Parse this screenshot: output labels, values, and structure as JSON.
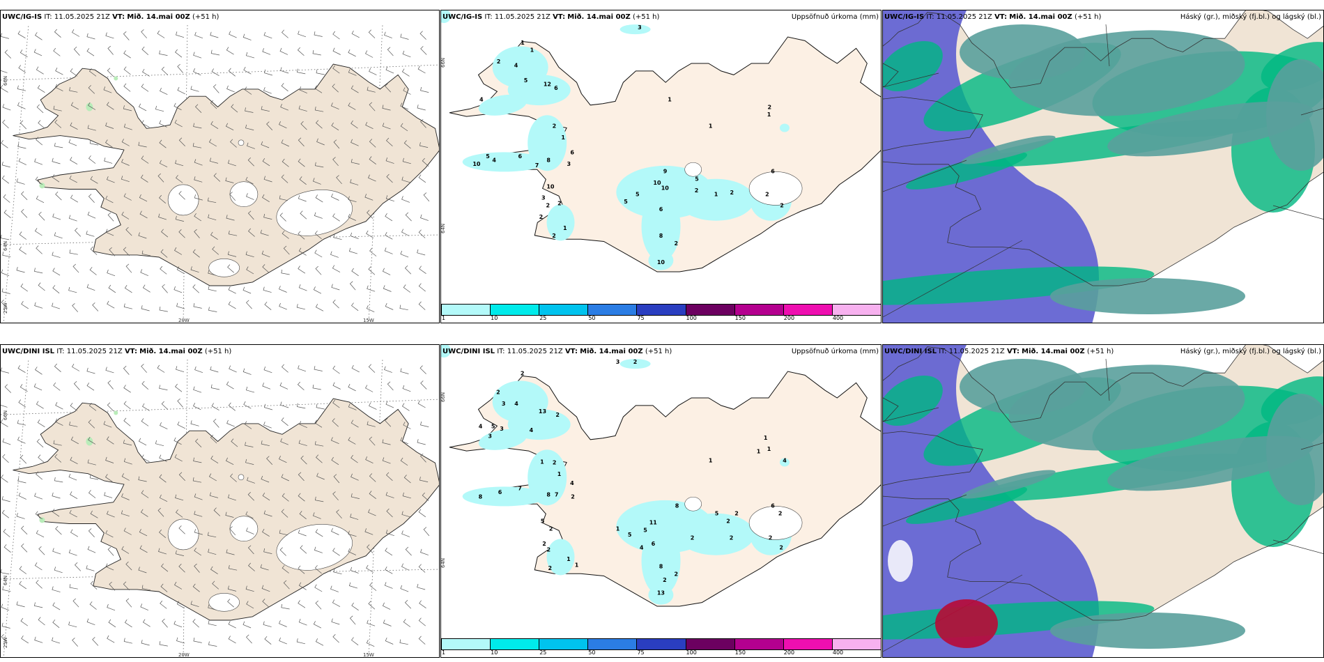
{
  "rows": [
    {
      "model": "UWC/IG-IS",
      "it_label": "IT:",
      "it_value": "11.05.2025 21Z",
      "vt_label": "VT:",
      "vt_value": "Mið. 14.mai 00Z",
      "lead": "(+51 h)",
      "precip_numbers": [
        {
          "v": "3",
          "lon": -19.9,
          "lat": 66.6
        },
        {
          "v": "1",
          "lon": -22.6,
          "lat": 66.4
        },
        {
          "v": "1",
          "lon": -22.4,
          "lat": 66.3
        },
        {
          "v": "2",
          "lon": -23.2,
          "lat": 66.15
        },
        {
          "v": "4",
          "lon": -22.8,
          "lat": 66.1
        },
        {
          "v": "5",
          "lon": -22.6,
          "lat": 65.9
        },
        {
          "v": "12",
          "lon": -22.1,
          "lat": 65.85
        },
        {
          "v": "6",
          "lon": -21.9,
          "lat": 65.8
        },
        {
          "v": "4",
          "lon": -23.7,
          "lat": 65.65
        },
        {
          "v": "1",
          "lon": -19.2,
          "lat": 65.65
        },
        {
          "v": "2",
          "lon": -16.8,
          "lat": 65.55
        },
        {
          "v": "1",
          "lon": -16.8,
          "lat": 65.45
        },
        {
          "v": "1",
          "lon": -18.2,
          "lat": 65.3
        },
        {
          "v": "2",
          "lon": -22.0,
          "lat": 65.3
        },
        {
          "v": "1",
          "lon": -21.8,
          "lat": 65.15
        },
        {
          "v": "6",
          "lon": -21.6,
          "lat": 64.95
        },
        {
          "v": "5",
          "lon": -23.7,
          "lat": 64.9
        },
        {
          "v": "4",
          "lon": -23.55,
          "lat": 64.85
        },
        {
          "v": "6",
          "lon": -22.9,
          "lat": 64.9
        },
        {
          "v": "8",
          "lon": -22.2,
          "lat": 64.85
        },
        {
          "v": "10",
          "lon": -24.0,
          "lat": 64.8
        },
        {
          "v": "7",
          "lon": -22.5,
          "lat": 64.78
        },
        {
          "v": "3",
          "lon": -21.7,
          "lat": 64.8
        },
        {
          "v": "9",
          "lon": -19.3,
          "lat": 64.7
        },
        {
          "v": "6",
          "lon": -16.6,
          "lat": 64.7
        },
        {
          "v": "10",
          "lon": -19.5,
          "lat": 64.55
        },
        {
          "v": "5",
          "lon": -18.5,
          "lat": 64.6
        },
        {
          "v": "10",
          "lon": -22.2,
          "lat": 64.5
        },
        {
          "v": "10",
          "lon": -19.3,
          "lat": 64.48
        },
        {
          "v": "2",
          "lon": -18.5,
          "lat": 64.45
        },
        {
          "v": "5",
          "lon": -20.0,
          "lat": 64.4
        },
        {
          "v": "1",
          "lon": -18.0,
          "lat": 64.4
        },
        {
          "v": "2",
          "lon": -17.6,
          "lat": 64.42
        },
        {
          "v": "2",
          "lon": -16.7,
          "lat": 64.4
        },
        {
          "v": "3",
          "lon": -22.4,
          "lat": 64.35
        },
        {
          "v": "5",
          "lon": -20.3,
          "lat": 64.3
        },
        {
          "v": "2",
          "lon": -22.0,
          "lat": 64.28
        },
        {
          "v": "2",
          "lon": -22.3,
          "lat": 64.25
        },
        {
          "v": "6",
          "lon": -19.4,
          "lat": 64.2
        },
        {
          "v": "2",
          "lon": -16.3,
          "lat": 64.25
        },
        {
          "v": "2",
          "lon": -22.5,
          "lat": 64.1
        },
        {
          "v": "1",
          "lon": -21.9,
          "lat": 63.95
        },
        {
          "v": "8",
          "lon": -19.4,
          "lat": 63.85
        },
        {
          "v": "2",
          "lon": -22.2,
          "lat": 63.85
        },
        {
          "v": "2",
          "lon": -19.0,
          "lat": 63.75
        },
        {
          "v": "10",
          "lon": -19.4,
          "lat": 63.5
        }
      ]
    },
    {
      "model": "UWC/DINI ISL",
      "it_label": "IT:",
      "it_value": "11.05.2025 21Z",
      "vt_label": "VT:",
      "vt_value": "Mið. 14.mai 00Z",
      "lead": "(+51 h)",
      "precip_numbers": [
        {
          "v": "3",
          "lon": -20.4,
          "lat": 66.6
        },
        {
          "v": "2",
          "lon": -20.0,
          "lat": 66.6
        },
        {
          "v": "2",
          "lon": -22.6,
          "lat": 66.45
        },
        {
          "v": "2",
          "lon": -23.2,
          "lat": 66.2
        },
        {
          "v": "3",
          "lon": -23.1,
          "lat": 66.05
        },
        {
          "v": "4",
          "lon": -22.8,
          "lat": 66.05
        },
        {
          "v": "13",
          "lon": -22.2,
          "lat": 65.95
        },
        {
          "v": "2",
          "lon": -21.85,
          "lat": 65.9
        },
        {
          "v": "4",
          "lon": -23.7,
          "lat": 65.75
        },
        {
          "v": "5",
          "lon": -23.4,
          "lat": 65.75
        },
        {
          "v": "3",
          "lon": -23.2,
          "lat": 65.72
        },
        {
          "v": "4",
          "lon": -22.5,
          "lat": 65.7
        },
        {
          "v": "3",
          "lon": -23.5,
          "lat": 65.62
        },
        {
          "v": "1",
          "lon": -16.9,
          "lat": 65.6
        },
        {
          "v": "1",
          "lon": -16.8,
          "lat": 65.45
        },
        {
          "v": "1",
          "lon": -17.05,
          "lat": 65.42
        },
        {
          "v": "1",
          "lon": -18.2,
          "lat": 65.3
        },
        {
          "v": "4",
          "lon": -16.4,
          "lat": 65.3
        },
        {
          "v": "1",
          "lon": -22.3,
          "lat": 65.28
        },
        {
          "v": "2",
          "lon": -22.0,
          "lat": 65.27
        },
        {
          "v": "1",
          "lon": -21.9,
          "lat": 65.12
        },
        {
          "v": "4",
          "lon": -21.6,
          "lat": 65.0
        },
        {
          "v": "7",
          "lon": -22.9,
          "lat": 64.93
        },
        {
          "v": "6",
          "lon": -23.4,
          "lat": 64.88
        },
        {
          "v": "8",
          "lon": -22.2,
          "lat": 64.85
        },
        {
          "v": "7",
          "lon": -22.0,
          "lat": 64.85
        },
        {
          "v": "2",
          "lon": -21.6,
          "lat": 64.82
        },
        {
          "v": "8",
          "lon": -23.9,
          "lat": 64.82
        },
        {
          "v": "8",
          "lon": -19.0,
          "lat": 64.7
        },
        {
          "v": "6",
          "lon": -16.6,
          "lat": 64.7
        },
        {
          "v": "5",
          "lon": -18.0,
          "lat": 64.6
        },
        {
          "v": "2",
          "lon": -17.5,
          "lat": 64.6
        },
        {
          "v": "2",
          "lon": -16.4,
          "lat": 64.6
        },
        {
          "v": "5",
          "lon": -22.4,
          "lat": 64.5
        },
        {
          "v": "11",
          "lon": -19.6,
          "lat": 64.48
        },
        {
          "v": "2",
          "lon": -17.7,
          "lat": 64.5
        },
        {
          "v": "1",
          "lon": -20.5,
          "lat": 64.4
        },
        {
          "v": "2",
          "lon": -22.2,
          "lat": 64.4
        },
        {
          "v": "5",
          "lon": -19.8,
          "lat": 64.38
        },
        {
          "v": "5",
          "lon": -20.2,
          "lat": 64.32
        },
        {
          "v": "2",
          "lon": -18.6,
          "lat": 64.28
        },
        {
          "v": "2",
          "lon": -17.6,
          "lat": 64.28
        },
        {
          "v": "2",
          "lon": -16.6,
          "lat": 64.28
        },
        {
          "v": "2",
          "lon": -22.4,
          "lat": 64.2
        },
        {
          "v": "6",
          "lon": -19.6,
          "lat": 64.2
        },
        {
          "v": "2",
          "lon": -16.3,
          "lat": 64.15
        },
        {
          "v": "2",
          "lon": -22.3,
          "lat": 64.12
        },
        {
          "v": "4",
          "lon": -19.9,
          "lat": 64.15
        },
        {
          "v": "1",
          "lon": -21.8,
          "lat": 64.0
        },
        {
          "v": "2",
          "lon": -22.3,
          "lat": 63.88
        },
        {
          "v": "1",
          "lon": -21.6,
          "lat": 63.92
        },
        {
          "v": "8",
          "lon": -19.4,
          "lat": 63.9
        },
        {
          "v": "2",
          "lon": -19.0,
          "lat": 63.8
        },
        {
          "v": "2",
          "lon": -19.3,
          "lat": 63.72
        },
        {
          "v": "13",
          "lon": -19.4,
          "lat": 63.55
        }
      ]
    }
  ],
  "precip_title": "Uppsöfnuð úrkoma (mm)",
  "cloud_title": "Háský (gr.), miðský (fj.bl.) og lágský (bl.)",
  "precip_scale": {
    "ticks": [
      "1",
      "10",
      "25",
      "50",
      "75",
      "100",
      "150",
      "200",
      "400"
    ],
    "colors": [
      "#b3f9f9",
      "#00ebeb",
      "#00c3ee",
      "#2b7de4",
      "#2a3ec0",
      "#6c0060",
      "#b4008f",
      "#ee0fb0",
      "#f7b1ef"
    ]
  },
  "grid_labels": {
    "lat66": "66N",
    "lat64": "64N",
    "lon25": "25W",
    "lon20": "20W",
    "lon15": "15W"
  },
  "colors": {
    "land": "#f0e4d5",
    "land_precip": "#fcf0e4",
    "low_cloud": "#6464d2",
    "mid_cloud": "#00b882",
    "high_cloud": "#5aa09c",
    "warm_blob": "#b80a36"
  }
}
